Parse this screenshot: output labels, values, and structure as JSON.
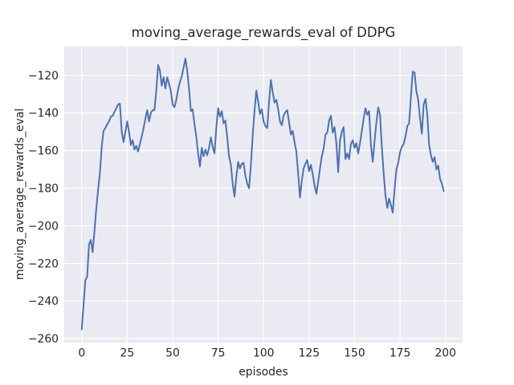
{
  "figure": {
    "title": "moving_average_rewards_eval of DDPG",
    "xlabel": "episodes",
    "ylabel": "moving_average_rewards_eval"
  },
  "style": {
    "page_bg": "#ffffff",
    "plot_bg": "#eaeaf2",
    "grid_color": "#ffffff",
    "line_color": "#4c72b0",
    "text_color": "#262626",
    "line_width": 2,
    "grid_width": 1.2
  },
  "chart_data": {
    "type": "line",
    "title": "moving_average_rewards_eval of DDPG",
    "xlabel": "episodes",
    "ylabel": "moving_average_rewards_eval",
    "series_name": "moving_average_rewards_eval",
    "x_is_index": true,
    "x_start": 0,
    "values": [
      -255,
      -242,
      -229,
      -227,
      -210,
      -207.5,
      -214,
      -203,
      -191,
      -181,
      -172,
      -158,
      -149.5,
      -148,
      -146,
      -144.5,
      -142,
      -141.5,
      -139.5,
      -137.5,
      -135.5,
      -135,
      -150,
      -155.5,
      -150,
      -144.5,
      -150,
      -157,
      -154.5,
      -159.5,
      -157.5,
      -160.5,
      -156.5,
      -152.5,
      -148,
      -143,
      -138.5,
      -144.5,
      -140,
      -138.5,
      -138.5,
      -128,
      -114.5,
      -117.5,
      -125.5,
      -121,
      -127,
      -121,
      -124.5,
      -128,
      -135.5,
      -137,
      -133,
      -127.5,
      -123.5,
      -120.5,
      -116,
      -111,
      -117.5,
      -127,
      -139,
      -138,
      -146,
      -152.5,
      -161.5,
      -168.5,
      -158.5,
      -163,
      -159.5,
      -162.5,
      -158.5,
      -153,
      -158,
      -161.5,
      -148,
      -137.5,
      -142,
      -139,
      -145.5,
      -144,
      -153,
      -163,
      -167.5,
      -177.5,
      -184.5,
      -174,
      -166,
      -169.5,
      -167,
      -166.5,
      -173.5,
      -177.5,
      -180,
      -168,
      -152,
      -139,
      -128,
      -134,
      -140.5,
      -138,
      -144.5,
      -147,
      -148,
      -134,
      -122.5,
      -129,
      -134.5,
      -133,
      -138,
      -144.5,
      -146.5,
      -141.5,
      -139.5,
      -138.5,
      -145,
      -151.5,
      -149.5,
      -155.5,
      -160.5,
      -172,
      -185,
      -176,
      -169.5,
      -167,
      -165,
      -171,
      -167.5,
      -172.5,
      -178.5,
      -183,
      -176.5,
      -169.5,
      -163,
      -159,
      -151.5,
      -150.5,
      -144,
      -141.5,
      -150.5,
      -147.5,
      -156,
      -171.5,
      -154.5,
      -150,
      -147.5,
      -164.5,
      -161.5,
      -164.5,
      -156.5,
      -154.5,
      -158.5,
      -156,
      -161.5,
      -156,
      -149.5,
      -143,
      -137.5,
      -141,
      -139,
      -157,
      -166,
      -155,
      -145,
      -137,
      -141,
      -158,
      -172,
      -184,
      -190.5,
      -185.5,
      -189,
      -193,
      -180.5,
      -170,
      -166.5,
      -161,
      -158,
      -156.5,
      -152.5,
      -147,
      -145.5,
      -131,
      -118,
      -118.5,
      -128.5,
      -133,
      -143,
      -151,
      -135.5,
      -132.5,
      -141,
      -157,
      -162.5,
      -166,
      -163.5,
      -170,
      -168,
      -175,
      -177.5,
      -181.5
    ],
    "xlim": [
      -9.6,
      209.4
    ],
    "ylim": [
      -262.1,
      -104.5
    ],
    "xticks": [
      0,
      25,
      50,
      75,
      100,
      125,
      150,
      175,
      200
    ],
    "yticks": [
      -260,
      -240,
      -220,
      -200,
      -180,
      -160,
      -140,
      -120
    ],
    "grid": true,
    "legend": null
  }
}
